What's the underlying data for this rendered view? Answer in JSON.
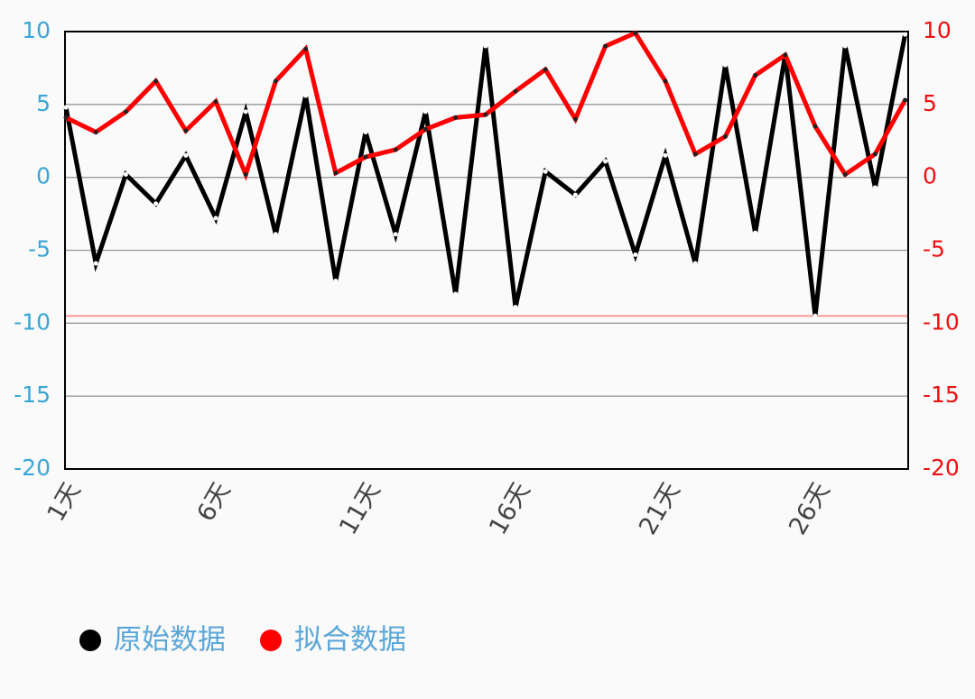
{
  "chart_data": {
    "type": "line",
    "categories": [
      "1天",
      null,
      null,
      null,
      null,
      "6天",
      null,
      null,
      null,
      null,
      "11天",
      null,
      null,
      null,
      null,
      "16天",
      null,
      null,
      null,
      null,
      "21天",
      null,
      null,
      null,
      null,
      "26天",
      null,
      null,
      null
    ],
    "series": [
      {
        "name": "原始数据",
        "color": "#000000",
        "values": [
          4.8,
          -5.9,
          0.2,
          -1.8,
          1.5,
          -2.8,
          4.5,
          -3.9,
          5.6,
          -7.1,
          3.1,
          -3.9,
          4.5,
          -8.0,
          9.0,
          -8.9,
          0.4,
          -1.2,
          1.1,
          -5.3,
          1.5,
          -5.9,
          7.7,
          -3.8,
          8.4,
          -9.5,
          9.0,
          -0.7,
          9.8
        ]
      },
      {
        "name": "拟合数据",
        "color": "#ff0000",
        "axis": "y2",
        "values": [
          4.1,
          3.1,
          4.5,
          6.6,
          3.2,
          5.2,
          0.2,
          6.6,
          8.8,
          0.3,
          1.4,
          1.9,
          3.3,
          4.1,
          4.3,
          5.9,
          7.4,
          4.0,
          9.0,
          9.9,
          6.6,
          1.6,
          2.8,
          7.0,
          8.4,
          3.5,
          0.2,
          1.6,
          5.3
        ]
      }
    ],
    "ylim": [
      -20,
      10
    ],
    "yticks": [
      -20,
      -15,
      -10,
      -5,
      0,
      5,
      10
    ],
    "ytick_color": "#3aa6d6",
    "y2lim": [
      -20,
      10
    ],
    "y2ticks": [
      -20,
      -15,
      -10,
      -5,
      0,
      5,
      10
    ],
    "y2tick_color": "#ee1111",
    "grid": true,
    "limit_line": -9.5,
    "limit_line_color": "#ff9999",
    "legend": "bottom-left",
    "legend_text_color": "#5aa6d8"
  }
}
